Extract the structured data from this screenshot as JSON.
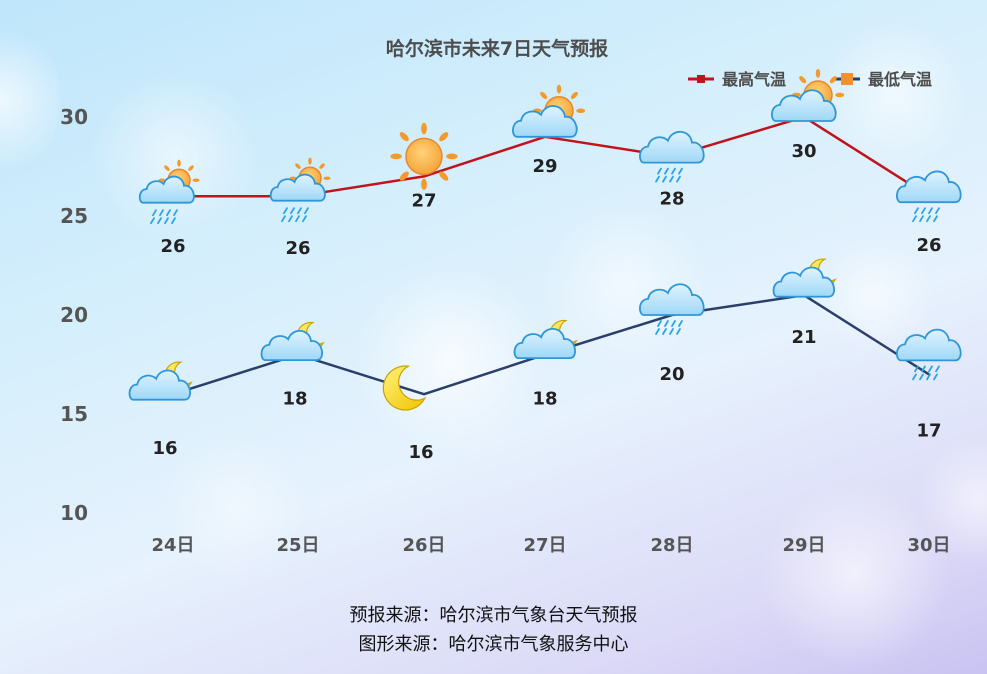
{
  "chart_data": {
    "type": "line",
    "title": "哈尔滨市未来7日天气预报",
    "categories": [
      "24日",
      "25日",
      "26日",
      "27日",
      "28日",
      "29日",
      "30日"
    ],
    "ylim": [
      10,
      31
    ],
    "yticks": [
      10,
      15,
      20,
      25,
      30
    ],
    "legend_position": "top-right",
    "series": [
      {
        "name": "最高气温",
        "color": "#c0141c",
        "values": [
          26,
          26,
          27,
          29,
          28,
          30,
          26
        ],
        "icons": [
          "cloud-sun-rain-icon",
          "cloud-sun-rain-icon",
          "sun-icon",
          "cloud-sun-icon",
          "cloud-rain-icon",
          "cloud-sun-icon",
          "cloud-rain-icon"
        ]
      },
      {
        "name": "最低气温",
        "color": "#2b3f6b",
        "values": [
          16,
          18,
          16,
          18,
          20,
          21,
          17
        ],
        "icons": [
          "cloud-moon-icon",
          "cloud-moon-icon",
          "moon-icon",
          "cloud-moon-icon",
          "cloud-rain-icon",
          "cloud-moon-icon",
          "cloud-rain-icon"
        ]
      }
    ]
  },
  "sources": {
    "forecast": "预报来源：哈尔滨市气象台天气预报",
    "graphic": "图形来源：哈尔滨市气象服务中心"
  }
}
